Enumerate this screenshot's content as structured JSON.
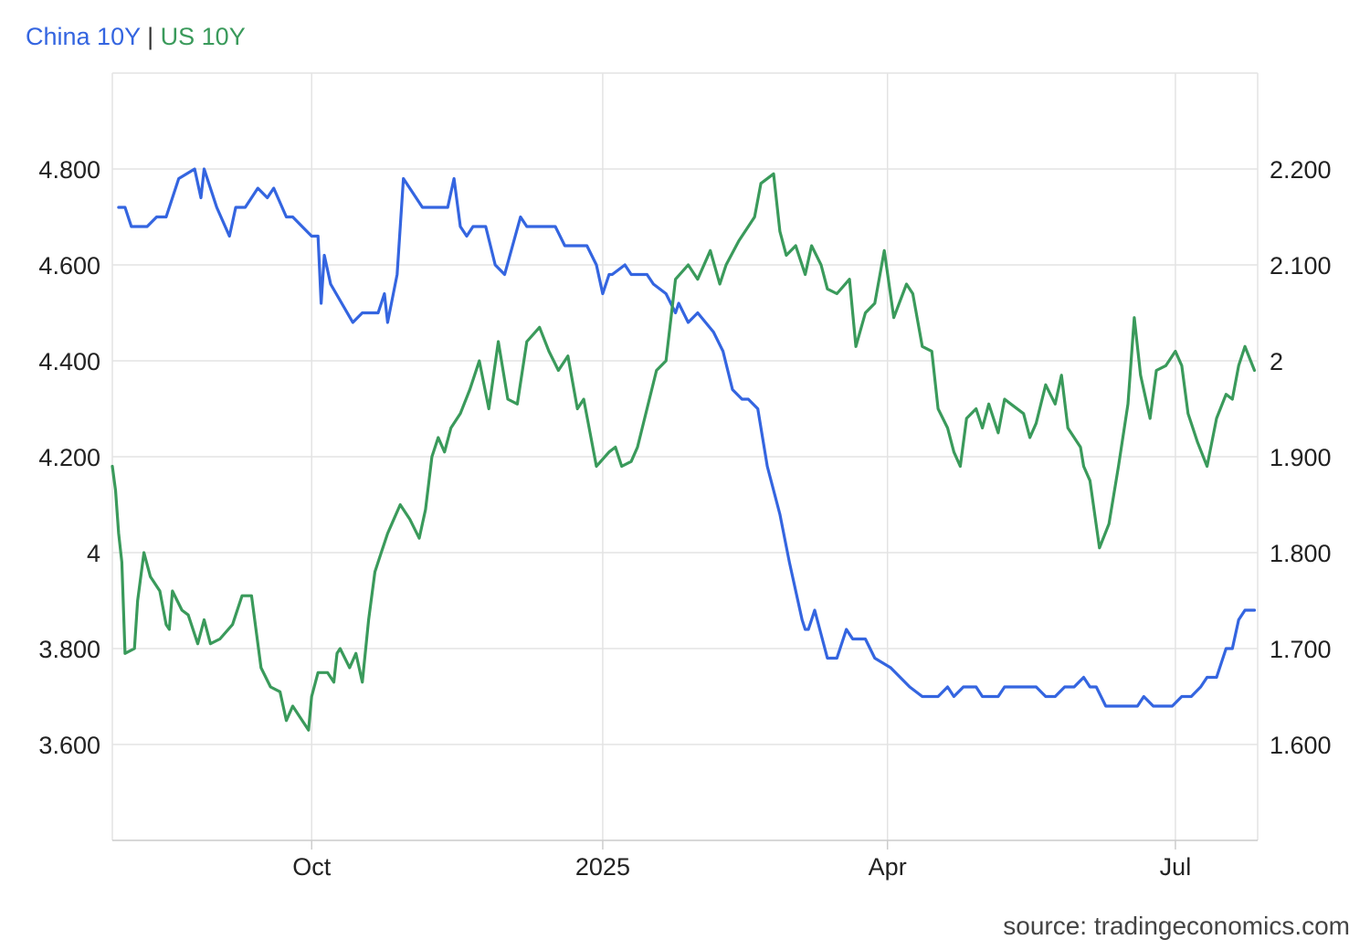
{
  "chart_data": {
    "type": "line",
    "legend_placement": "top-left",
    "grid": true,
    "x_range": [
      "2024-07-30",
      "2025-07-27"
    ],
    "x_ticks": [
      {
        "label": "Oct",
        "date": "2024-10-01"
      },
      {
        "label": "2025",
        "date": "2025-01-01"
      },
      {
        "label": "Apr",
        "date": "2025-04-01"
      },
      {
        "label": "Jul",
        "date": "2025-07-01"
      }
    ],
    "y_left": {
      "range": [
        3.4,
        5.0
      ],
      "ticks": [
        3.6,
        3.8,
        4.0,
        4.2,
        4.4,
        4.6,
        4.8
      ],
      "tick_labels": [
        "3.600",
        "3.800",
        "4",
        "4.200",
        "4.400",
        "4.600",
        "4.800"
      ]
    },
    "y_right": {
      "range": [
        1.5,
        2.3
      ],
      "ticks": [
        1.6,
        1.7,
        1.8,
        1.9,
        2.0,
        2.1,
        2.2
      ],
      "tick_labels": [
        "1.600",
        "1.700",
        "1.800",
        "1.900",
        "2",
        "2.100",
        "2.200"
      ]
    },
    "series": [
      {
        "name": "China 10Y",
        "axis": "right",
        "color": "#3465e0",
        "points": [
          [
            "2024-08-01",
            2.16
          ],
          [
            "2024-08-03",
            2.16
          ],
          [
            "2024-08-05",
            2.14
          ],
          [
            "2024-08-10",
            2.14
          ],
          [
            "2024-08-13",
            2.15
          ],
          [
            "2024-08-16",
            2.15
          ],
          [
            "2024-08-20",
            2.19
          ],
          [
            "2024-08-25",
            2.2
          ],
          [
            "2024-08-27",
            2.17
          ],
          [
            "2024-08-28",
            2.2
          ],
          [
            "2024-09-01",
            2.16
          ],
          [
            "2024-09-05",
            2.13
          ],
          [
            "2024-09-07",
            2.16
          ],
          [
            "2024-09-10",
            2.16
          ],
          [
            "2024-09-14",
            2.18
          ],
          [
            "2024-09-17",
            2.17
          ],
          [
            "2024-09-19",
            2.18
          ],
          [
            "2024-09-23",
            2.15
          ],
          [
            "2024-09-25",
            2.15
          ],
          [
            "2024-09-28",
            2.14
          ],
          [
            "2024-10-01",
            2.13
          ],
          [
            "2024-10-03",
            2.13
          ],
          [
            "2024-10-04",
            2.06
          ],
          [
            "2024-10-05",
            2.11
          ],
          [
            "2024-10-07",
            2.08
          ],
          [
            "2024-10-14",
            2.04
          ],
          [
            "2024-10-17",
            2.05
          ],
          [
            "2024-10-22",
            2.05
          ],
          [
            "2024-10-24",
            2.07
          ],
          [
            "2024-10-25",
            2.04
          ],
          [
            "2024-10-28",
            2.09
          ],
          [
            "2024-10-30",
            2.19
          ],
          [
            "2024-11-05",
            2.16
          ],
          [
            "2024-11-13",
            2.16
          ],
          [
            "2024-11-15",
            2.19
          ],
          [
            "2024-11-17",
            2.14
          ],
          [
            "2024-11-19",
            2.13
          ],
          [
            "2024-11-21",
            2.14
          ],
          [
            "2024-11-25",
            2.14
          ],
          [
            "2024-11-28",
            2.1
          ],
          [
            "2024-12-01",
            2.09
          ],
          [
            "2024-12-06",
            2.15
          ],
          [
            "2024-12-08",
            2.14
          ],
          [
            "2024-12-14",
            2.14
          ],
          [
            "2024-12-17",
            2.14
          ],
          [
            "2024-12-20",
            2.12
          ],
          [
            "2024-12-27",
            2.12
          ],
          [
            "2024-12-30",
            2.1
          ],
          [
            "2025-01-01",
            2.07
          ],
          [
            "2025-01-03",
            2.09
          ],
          [
            "2025-01-04",
            2.09
          ],
          [
            "2025-01-08",
            2.1
          ],
          [
            "2025-01-10",
            2.09
          ],
          [
            "2025-01-15",
            2.09
          ],
          [
            "2025-01-17",
            2.08
          ],
          [
            "2025-01-21",
            2.07
          ],
          [
            "2025-01-24",
            2.05
          ],
          [
            "2025-01-25",
            2.06
          ],
          [
            "2025-01-28",
            2.04
          ],
          [
            "2025-01-31",
            2.05
          ],
          [
            "2025-02-05",
            2.03
          ],
          [
            "2025-02-08",
            2.01
          ],
          [
            "2025-02-11",
            1.97
          ],
          [
            "2025-02-14",
            1.96
          ],
          [
            "2025-02-16",
            1.96
          ],
          [
            "2025-02-19",
            1.95
          ],
          [
            "2025-02-22",
            1.89
          ],
          [
            "2025-02-26",
            1.84
          ],
          [
            "2025-03-01",
            1.79
          ],
          [
            "2025-03-05",
            1.73
          ],
          [
            "2025-03-06",
            1.72
          ],
          [
            "2025-03-07",
            1.72
          ],
          [
            "2025-03-09",
            1.74
          ],
          [
            "2025-03-13",
            1.69
          ],
          [
            "2025-03-16",
            1.69
          ],
          [
            "2025-03-19",
            1.72
          ],
          [
            "2025-03-21",
            1.71
          ],
          [
            "2025-03-25",
            1.71
          ],
          [
            "2025-03-28",
            1.69
          ],
          [
            "2025-04-02",
            1.68
          ],
          [
            "2025-04-08",
            1.66
          ],
          [
            "2025-04-12",
            1.65
          ],
          [
            "2025-04-15",
            1.65
          ],
          [
            "2025-04-17",
            1.65
          ],
          [
            "2025-04-20",
            1.66
          ],
          [
            "2025-04-22",
            1.65
          ],
          [
            "2025-04-25",
            1.66
          ],
          [
            "2025-04-29",
            1.66
          ],
          [
            "2025-05-01",
            1.65
          ],
          [
            "2025-05-06",
            1.65
          ],
          [
            "2025-05-08",
            1.66
          ],
          [
            "2025-05-12",
            1.66
          ],
          [
            "2025-05-14",
            1.66
          ],
          [
            "2025-05-18",
            1.66
          ],
          [
            "2025-05-21",
            1.65
          ],
          [
            "2025-05-24",
            1.65
          ],
          [
            "2025-05-27",
            1.66
          ],
          [
            "2025-05-30",
            1.66
          ],
          [
            "2025-06-02",
            1.67
          ],
          [
            "2025-06-04",
            1.66
          ],
          [
            "2025-06-06",
            1.66
          ],
          [
            "2025-06-09",
            1.64
          ],
          [
            "2025-06-12",
            1.64
          ],
          [
            "2025-06-16",
            1.64
          ],
          [
            "2025-06-19",
            1.64
          ],
          [
            "2025-06-21",
            1.65
          ],
          [
            "2025-06-24",
            1.64
          ],
          [
            "2025-06-27",
            1.64
          ],
          [
            "2025-06-30",
            1.64
          ],
          [
            "2025-07-03",
            1.65
          ],
          [
            "2025-07-06",
            1.65
          ],
          [
            "2025-07-09",
            1.66
          ],
          [
            "2025-07-11",
            1.67
          ],
          [
            "2025-07-14",
            1.67
          ],
          [
            "2025-07-17",
            1.7
          ],
          [
            "2025-07-19",
            1.7
          ],
          [
            "2025-07-21",
            1.73
          ],
          [
            "2025-07-23",
            1.74
          ],
          [
            "2025-07-26",
            1.74
          ]
        ]
      },
      {
        "name": "US 10Y",
        "axis": "left",
        "color": "#3a9a5b",
        "points": [
          [
            "2024-07-30",
            4.18
          ],
          [
            "2024-07-31",
            4.13
          ],
          [
            "2024-08-01",
            4.04
          ],
          [
            "2024-08-02",
            3.98
          ],
          [
            "2024-08-03",
            3.79
          ],
          [
            "2024-08-06",
            3.8
          ],
          [
            "2024-08-07",
            3.9
          ],
          [
            "2024-08-09",
            4.0
          ],
          [
            "2024-08-11",
            3.95
          ],
          [
            "2024-08-14",
            3.92
          ],
          [
            "2024-08-16",
            3.85
          ],
          [
            "2024-08-17",
            3.84
          ],
          [
            "2024-08-18",
            3.92
          ],
          [
            "2024-08-21",
            3.88
          ],
          [
            "2024-08-23",
            3.87
          ],
          [
            "2024-08-26",
            3.81
          ],
          [
            "2024-08-28",
            3.86
          ],
          [
            "2024-08-30",
            3.81
          ],
          [
            "2024-09-02",
            3.82
          ],
          [
            "2024-09-06",
            3.85
          ],
          [
            "2024-09-09",
            3.91
          ],
          [
            "2024-09-12",
            3.91
          ],
          [
            "2024-09-15",
            3.76
          ],
          [
            "2024-09-18",
            3.72
          ],
          [
            "2024-09-21",
            3.71
          ],
          [
            "2024-09-23",
            3.65
          ],
          [
            "2024-09-25",
            3.68
          ],
          [
            "2024-09-27",
            3.66
          ],
          [
            "2024-09-30",
            3.63
          ],
          [
            "2024-10-01",
            3.7
          ],
          [
            "2024-10-03",
            3.75
          ],
          [
            "2024-10-06",
            3.75
          ],
          [
            "2024-10-08",
            3.73
          ],
          [
            "2024-10-09",
            3.79
          ],
          [
            "2024-10-10",
            3.8
          ],
          [
            "2024-10-13",
            3.76
          ],
          [
            "2024-10-15",
            3.79
          ],
          [
            "2024-10-17",
            3.73
          ],
          [
            "2024-10-19",
            3.86
          ],
          [
            "2024-10-21",
            3.96
          ],
          [
            "2024-10-23",
            4.0
          ],
          [
            "2024-10-25",
            4.04
          ],
          [
            "2024-10-27",
            4.07
          ],
          [
            "2024-10-29",
            4.1
          ],
          [
            "2024-11-01",
            4.07
          ],
          [
            "2024-11-04",
            4.03
          ],
          [
            "2024-11-06",
            4.09
          ],
          [
            "2024-11-08",
            4.2
          ],
          [
            "2024-11-10",
            4.24
          ],
          [
            "2024-11-12",
            4.21
          ],
          [
            "2024-11-14",
            4.26
          ],
          [
            "2024-11-17",
            4.29
          ],
          [
            "2024-11-20",
            4.34
          ],
          [
            "2024-11-23",
            4.4
          ],
          [
            "2024-11-26",
            4.3
          ],
          [
            "2024-11-29",
            4.44
          ],
          [
            "2024-12-02",
            4.32
          ],
          [
            "2024-12-05",
            4.31
          ],
          [
            "2024-12-08",
            4.44
          ],
          [
            "2024-12-12",
            4.47
          ],
          [
            "2024-12-15",
            4.42
          ],
          [
            "2024-12-18",
            4.38
          ],
          [
            "2024-12-21",
            4.41
          ],
          [
            "2024-12-24",
            4.3
          ],
          [
            "2024-12-26",
            4.32
          ],
          [
            "2024-12-30",
            4.18
          ],
          [
            "2025-01-03",
            4.21
          ],
          [
            "2025-01-05",
            4.22
          ],
          [
            "2025-01-07",
            4.18
          ],
          [
            "2025-01-10",
            4.19
          ],
          [
            "2025-01-12",
            4.22
          ],
          [
            "2025-01-15",
            4.3
          ],
          [
            "2025-01-18",
            4.38
          ],
          [
            "2025-01-21",
            4.4
          ],
          [
            "2025-01-24",
            4.57
          ],
          [
            "2025-01-28",
            4.6
          ],
          [
            "2025-01-31",
            4.57
          ],
          [
            "2025-02-04",
            4.63
          ],
          [
            "2025-02-07",
            4.56
          ],
          [
            "2025-02-09",
            4.6
          ],
          [
            "2025-02-13",
            4.65
          ],
          [
            "2025-02-16",
            4.68
          ],
          [
            "2025-02-18",
            4.7
          ],
          [
            "2025-02-20",
            4.77
          ],
          [
            "2025-02-24",
            4.79
          ],
          [
            "2025-02-26",
            4.67
          ],
          [
            "2025-02-28",
            4.62
          ],
          [
            "2025-03-03",
            4.64
          ],
          [
            "2025-03-06",
            4.58
          ],
          [
            "2025-03-08",
            4.64
          ],
          [
            "2025-03-11",
            4.6
          ],
          [
            "2025-03-13",
            4.55
          ],
          [
            "2025-03-16",
            4.54
          ],
          [
            "2025-03-20",
            4.57
          ],
          [
            "2025-03-22",
            4.43
          ],
          [
            "2025-03-25",
            4.5
          ],
          [
            "2025-03-28",
            4.52
          ],
          [
            "2025-03-31",
            4.63
          ],
          [
            "2025-04-03",
            4.49
          ],
          [
            "2025-04-07",
            4.56
          ],
          [
            "2025-04-09",
            4.54
          ],
          [
            "2025-04-12",
            4.43
          ],
          [
            "2025-04-15",
            4.42
          ],
          [
            "2025-04-17",
            4.3
          ],
          [
            "2025-04-20",
            4.26
          ],
          [
            "2025-04-22",
            4.21
          ],
          [
            "2025-04-24",
            4.18
          ],
          [
            "2025-04-26",
            4.28
          ],
          [
            "2025-04-29",
            4.3
          ],
          [
            "2025-05-01",
            4.26
          ],
          [
            "2025-05-03",
            4.31
          ],
          [
            "2025-05-06",
            4.25
          ],
          [
            "2025-05-08",
            4.32
          ],
          [
            "2025-05-10",
            4.31
          ],
          [
            "2025-05-14",
            4.29
          ],
          [
            "2025-05-16",
            4.24
          ],
          [
            "2025-05-18",
            4.27
          ],
          [
            "2025-05-21",
            4.35
          ],
          [
            "2025-05-24",
            4.31
          ],
          [
            "2025-05-26",
            4.37
          ],
          [
            "2025-05-28",
            4.26
          ],
          [
            "2025-06-01",
            4.22
          ],
          [
            "2025-06-02",
            4.18
          ],
          [
            "2025-06-04",
            4.15
          ],
          [
            "2025-06-07",
            4.01
          ],
          [
            "2025-06-10",
            4.06
          ],
          [
            "2025-06-13",
            4.18
          ],
          [
            "2025-06-16",
            4.31
          ],
          [
            "2025-06-18",
            4.49
          ],
          [
            "2025-06-20",
            4.37
          ],
          [
            "2025-06-23",
            4.28
          ],
          [
            "2025-06-25",
            4.38
          ],
          [
            "2025-06-28",
            4.39
          ],
          [
            "2025-07-01",
            4.42
          ],
          [
            "2025-07-03",
            4.39
          ],
          [
            "2025-07-05",
            4.29
          ],
          [
            "2025-07-08",
            4.23
          ],
          [
            "2025-07-11",
            4.18
          ],
          [
            "2025-07-14",
            4.28
          ],
          [
            "2025-07-17",
            4.33
          ],
          [
            "2025-07-19",
            4.32
          ],
          [
            "2025-07-21",
            4.39
          ],
          [
            "2025-07-23",
            4.43
          ],
          [
            "2025-07-26",
            4.38
          ]
        ]
      }
    ],
    "source": "source: tradingeconomics.com"
  },
  "legend": {
    "china_label": "China 10Y",
    "separator": "|",
    "us_label": "US 10Y"
  }
}
